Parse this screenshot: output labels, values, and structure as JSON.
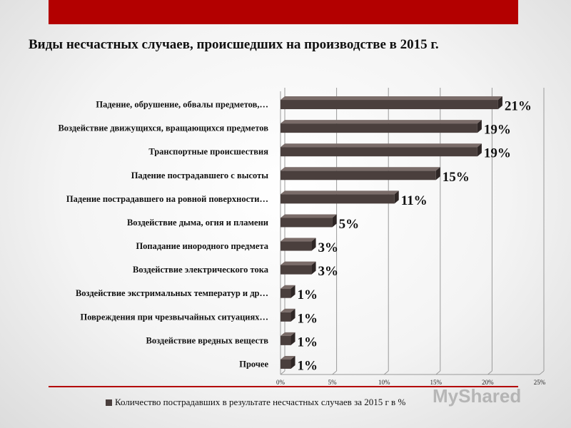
{
  "slide": {
    "title": "Виды несчастных случаев, происшедших на производстве в 2015 г.",
    "accent_color": "#b30000",
    "watermark": "MyShared"
  },
  "chart_data": {
    "type": "bar",
    "orientation": "horizontal",
    "categories": [
      "Падение, обрушение, обвалы предметов,…",
      "Воздействие движущихся, вращающихся предметов",
      "Транспортные происшествия",
      "Падение пострадавшего с высоты",
      "Падение пострадавшего на ровной поверхности…",
      "Воздействие дыма, огня и пламени",
      "Попадание инородного предмета",
      "Воздействие электрического тока",
      "Воздействие экстримальных температур и др…",
      "Повреждения при чрезвычайных ситуациях…",
      "Воздействие вредных веществ",
      "Прочее"
    ],
    "series": [
      {
        "name": "Количество пострадавших в результате несчастных случаев за 2015 г в %",
        "values": [
          21,
          19,
          19,
          15,
          11,
          5,
          3,
          3,
          1,
          1,
          1,
          1
        ],
        "data_labels": [
          "21%",
          "19%",
          "19%",
          "15%",
          "11%",
          "5%",
          "3%",
          "3%",
          "1%",
          "1%",
          "1%",
          "1%"
        ],
        "color": "#4a3f3d"
      }
    ],
    "x_ticks": [
      "0%",
      "5%",
      "10%",
      "15%",
      "20%",
      "25%"
    ],
    "xlim": [
      0,
      25
    ],
    "grid": true,
    "legend_position": "bottom"
  }
}
